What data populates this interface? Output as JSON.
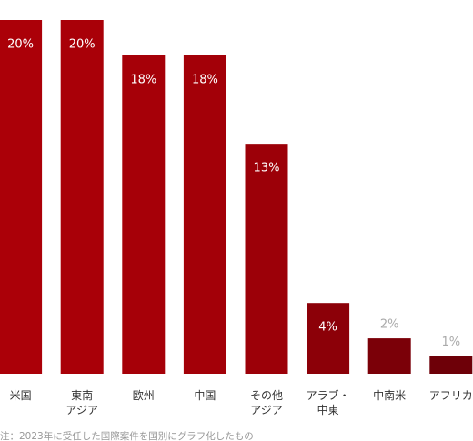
{
  "chart_data": {
    "type": "bar",
    "categories": [
      "米国",
      "東南\nアジア",
      "欧州",
      "中国",
      "その他\nアジア",
      "アラブ・\n中東",
      "中南米",
      "アフリカ"
    ],
    "values": [
      20,
      20,
      18,
      18,
      13,
      4,
      2,
      1
    ],
    "value_labels": [
      "20%",
      "20%",
      "18%",
      "18%",
      "13%",
      "4%",
      "2%",
      "1%"
    ],
    "colors": [
      "#ab0008",
      "#a90008",
      "#a60008",
      "#a30008",
      "#9c0008",
      "#8c0008",
      "#7b0008",
      "#6e0008"
    ],
    "ylim": [
      0,
      20
    ],
    "note": "注：2023年に受任した国際案件を国別にグラフ化したもの"
  }
}
